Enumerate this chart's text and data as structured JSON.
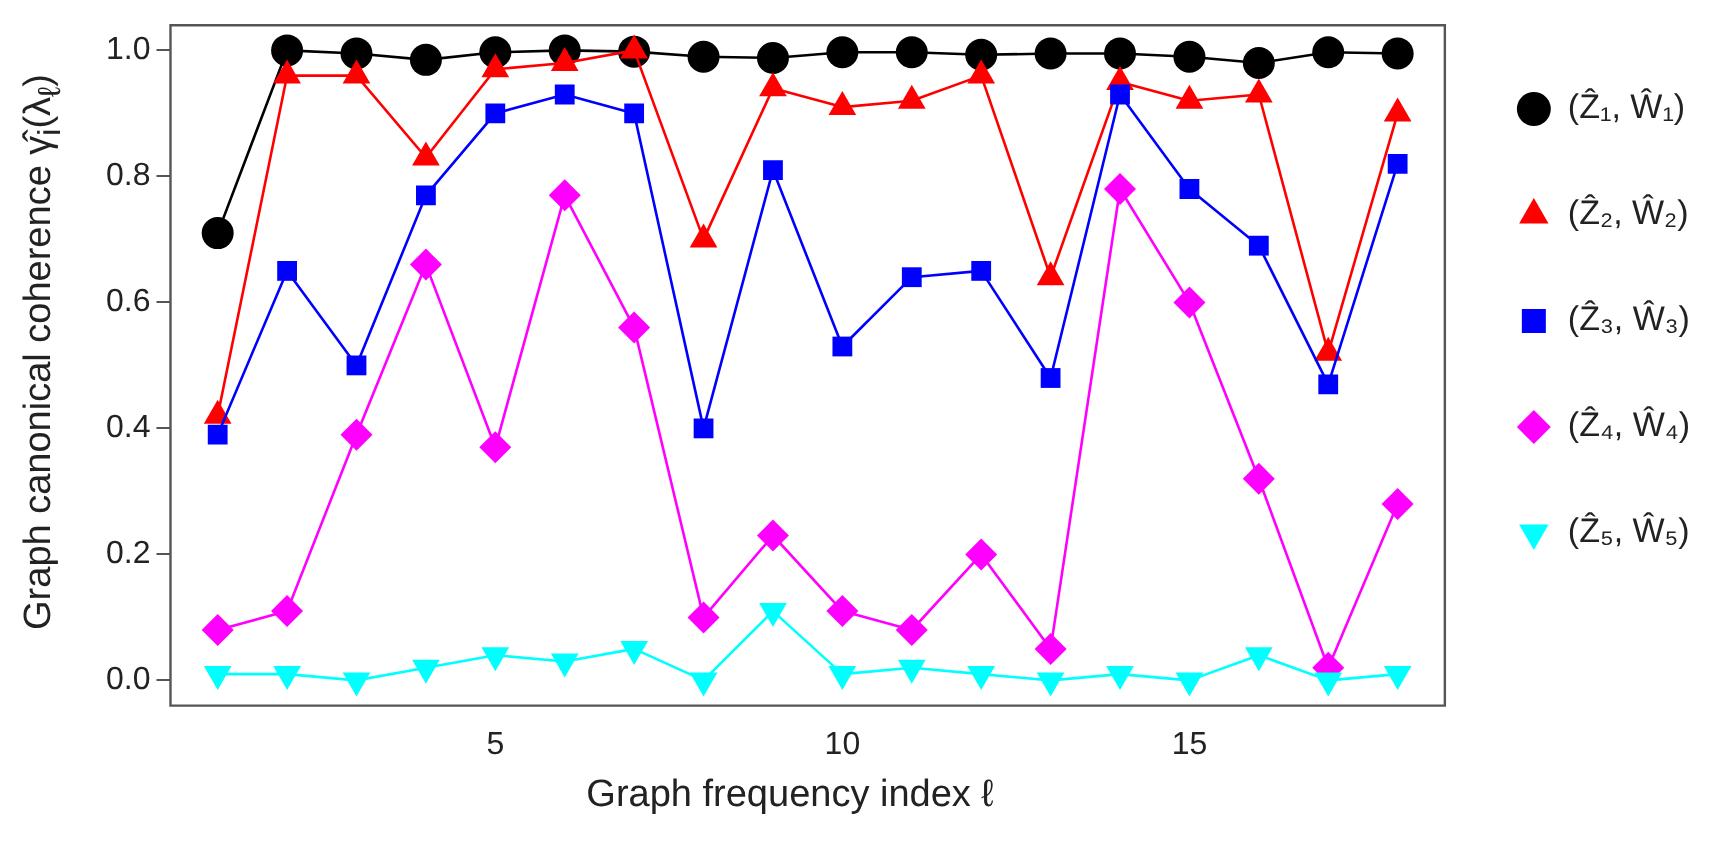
{
  "chart_data": {
    "type": "line",
    "xlabel": "Graph frequency index ℓ",
    "ylabel": "Graph canonical coherence γ̂$_{i}$(λ$_{ℓ}$)",
    "x": [
      1,
      2,
      3,
      4,
      5,
      6,
      7,
      8,
      9,
      10,
      11,
      12,
      13,
      14,
      15,
      16,
      17,
      18
    ],
    "series": [
      {
        "name": "(Ẑ₁, Ŵ₁)",
        "color": "#000000",
        "marker": "circle",
        "values": [
          0.71,
          1.0,
          0.995,
          0.985,
          0.997,
          1.0,
          0.998,
          0.99,
          0.988,
          0.997,
          0.997,
          0.993,
          0.995,
          0.995,
          0.99,
          0.98,
          0.997,
          0.995
        ]
      },
      {
        "name": "(Ẑ₂, Ŵ₂)",
        "color": "#ff0000",
        "marker": "triangle",
        "values": [
          0.42,
          0.96,
          0.96,
          0.83,
          0.97,
          0.98,
          1.0,
          0.7,
          0.94,
          0.91,
          0.92,
          0.96,
          0.64,
          0.95,
          0.92,
          0.93,
          0.52,
          0.9
        ]
      },
      {
        "name": "(Ẑ₃, Ŵ₃)",
        "color": "#0000ff",
        "marker": "square",
        "values": [
          0.39,
          0.65,
          0.5,
          0.77,
          0.9,
          0.93,
          0.9,
          0.4,
          0.81,
          0.53,
          0.64,
          0.65,
          0.48,
          0.93,
          0.78,
          0.69,
          0.47,
          0.82
        ]
      },
      {
        "name": "(Ẑ₄, Ŵ₄)",
        "color": "#ff00ff",
        "marker": "diamond",
        "values": [
          0.08,
          0.11,
          0.39,
          0.66,
          0.37,
          0.77,
          0.56,
          0.1,
          0.23,
          0.11,
          0.08,
          0.2,
          0.05,
          0.78,
          0.6,
          0.32,
          0.02,
          0.28
        ]
      },
      {
        "name": "(Ẑ₅, Ŵ₅)",
        "color": "#00ffff",
        "marker": "triangle-down",
        "values": [
          0.01,
          0.01,
          0.0,
          0.02,
          0.04,
          0.03,
          0.05,
          0.0,
          0.11,
          0.01,
          0.02,
          0.01,
          0.0,
          0.01,
          0.0,
          0.04,
          0.0,
          0.01
        ]
      }
    ],
    "xlim": [
      0.32,
      18.68
    ],
    "xticks": [
      5,
      10,
      15
    ],
    "ylim": [
      -0.04,
      1.04
    ],
    "yticks": [
      {
        "value": 0,
        "label": "0.0"
      },
      {
        "value": 0.2,
        "label": "0.2"
      },
      {
        "value": 0.4,
        "label": "0.4"
      },
      {
        "value": 0.6,
        "label": "0.6"
      },
      {
        "value": 0.8,
        "label": "0.8"
      },
      {
        "value": 1,
        "label": "1.0"
      }
    ],
    "grid": false,
    "legend": "right",
    "line_style": "solid"
  }
}
